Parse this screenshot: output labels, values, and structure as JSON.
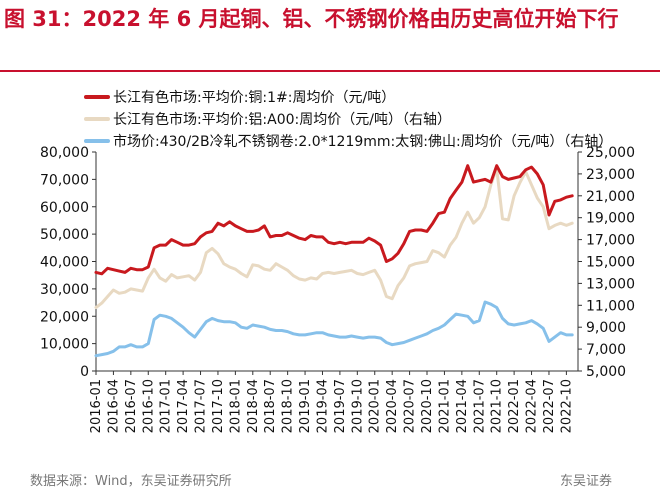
{
  "header": {
    "title": "图 31：2022 年 6 月起铜、铝、不锈钢价格由历史高位开始下行"
  },
  "footer": {
    "source": "数据来源：Wind，东吴证券研究所",
    "brand": "东吴证券"
  },
  "colors": {
    "title": "#c8102e",
    "copper": "#c8191e",
    "aluminum": "#e8d9c2",
    "stainless": "#86c0ea",
    "axis": "#333333"
  },
  "chart_data": {
    "type": "line",
    "title": "",
    "legend_placement": "top-left",
    "grid": false,
    "x_tick_labels": [
      "2016-01",
      "2016-04",
      "2016-07",
      "2016-10",
      "2017-01",
      "2017-04",
      "2017-07",
      "2017-10",
      "2018-01",
      "2018-04",
      "2018-07",
      "2018-10",
      "2019-01",
      "2019-04",
      "2019-07",
      "2019-10",
      "2020-01",
      "2020-04",
      "2020-07",
      "2020-10",
      "2021-01",
      "2021-04",
      "2021-07",
      "2021-10",
      "2022-01",
      "2022-04",
      "2022-07",
      "2022-10"
    ],
    "x_range": [
      "2016-01",
      "2022-12"
    ],
    "y_left": {
      "min": 0,
      "max": 80000,
      "ticks": [
        "0",
        "10,000",
        "20,000",
        "30,000",
        "40,000",
        "50,000",
        "60,000",
        "70,000",
        "80,000"
      ]
    },
    "y_right": {
      "min": 5000,
      "max": 25000,
      "ticks": [
        "5,000",
        "7,000",
        "9,000",
        "11,000",
        "13,000",
        "15,000",
        "17,000",
        "19,000",
        "21,000",
        "23,000",
        "25,000"
      ]
    },
    "series": [
      {
        "name": "长江有色市场:平均价:铜:1#:周均价（元/吨）",
        "axis": "left",
        "color": "#c8191e",
        "points": [
          [
            "2016-01",
            36000
          ],
          [
            "2016-02",
            35500
          ],
          [
            "2016-03",
            37500
          ],
          [
            "2016-04",
            37000
          ],
          [
            "2016-05",
            36500
          ],
          [
            "2016-06",
            36000
          ],
          [
            "2016-07",
            37500
          ],
          [
            "2016-08",
            37000
          ],
          [
            "2016-09",
            37000
          ],
          [
            "2016-10",
            38000
          ],
          [
            "2016-11",
            45000
          ],
          [
            "2016-12",
            46000
          ],
          [
            "2017-01",
            46000
          ],
          [
            "2017-02",
            48000
          ],
          [
            "2017-03",
            47000
          ],
          [
            "2017-04",
            46000
          ],
          [
            "2017-05",
            46000
          ],
          [
            "2017-06",
            46500
          ],
          [
            "2017-07",
            49000
          ],
          [
            "2017-08",
            50500
          ],
          [
            "2017-09",
            51000
          ],
          [
            "2017-10",
            54000
          ],
          [
            "2017-11",
            53000
          ],
          [
            "2017-12",
            54500
          ],
          [
            "2018-01",
            53000
          ],
          [
            "2018-02",
            52000
          ],
          [
            "2018-03",
            51000
          ],
          [
            "2018-04",
            51000
          ],
          [
            "2018-05",
            51500
          ],
          [
            "2018-06",
            53000
          ],
          [
            "2018-07",
            49000
          ],
          [
            "2018-08",
            49500
          ],
          [
            "2018-09",
            49500
          ],
          [
            "2018-10",
            50500
          ],
          [
            "2018-11",
            49500
          ],
          [
            "2018-12",
            48500
          ],
          [
            "2019-01",
            48000
          ],
          [
            "2019-02",
            49500
          ],
          [
            "2019-03",
            49000
          ],
          [
            "2019-04",
            49000
          ],
          [
            "2019-05",
            47000
          ],
          [
            "2019-06",
            46500
          ],
          [
            "2019-07",
            47000
          ],
          [
            "2019-08",
            46500
          ],
          [
            "2019-09",
            47000
          ],
          [
            "2019-10",
            47000
          ],
          [
            "2019-11",
            47000
          ],
          [
            "2019-12",
            48500
          ],
          [
            "2020-01",
            47500
          ],
          [
            "2020-02",
            46000
          ],
          [
            "2020-03",
            40000
          ],
          [
            "2020-04",
            41000
          ],
          [
            "2020-05",
            43000
          ],
          [
            "2020-06",
            46500
          ],
          [
            "2020-07",
            51000
          ],
          [
            "2020-08",
            51500
          ],
          [
            "2020-09",
            51500
          ],
          [
            "2020-10",
            51000
          ],
          [
            "2020-11",
            54000
          ],
          [
            "2020-12",
            57500
          ],
          [
            "2021-01",
            58000
          ],
          [
            "2021-02",
            63000
          ],
          [
            "2021-03",
            66000
          ],
          [
            "2021-04",
            69000
          ],
          [
            "2021-05",
            75000
          ],
          [
            "2021-06",
            69000
          ],
          [
            "2021-07",
            69500
          ],
          [
            "2021-08",
            70000
          ],
          [
            "2021-09",
            69000
          ],
          [
            "2021-10",
            75000
          ],
          [
            "2021-11",
            71000
          ],
          [
            "2021-12",
            70000
          ],
          [
            "2022-01",
            70500
          ],
          [
            "2022-02",
            71000
          ],
          [
            "2022-03",
            73500
          ],
          [
            "2022-04",
            74500
          ],
          [
            "2022-05",
            72000
          ],
          [
            "2022-06",
            68000
          ],
          [
            "2022-07",
            57000
          ],
          [
            "2022-08",
            62000
          ],
          [
            "2022-09",
            62500
          ],
          [
            "2022-10",
            63500
          ],
          [
            "2022-11",
            64000
          ]
        ]
      },
      {
        "name": "长江有色市场:平均价:铝:A00:周均价（元/吨）（右轴）",
        "axis": "right",
        "color": "#e8d9c2",
        "points": [
          [
            "2016-01",
            10800
          ],
          [
            "2016-02",
            11200
          ],
          [
            "2016-03",
            11800
          ],
          [
            "2016-04",
            12400
          ],
          [
            "2016-05",
            12100
          ],
          [
            "2016-06",
            12200
          ],
          [
            "2016-07",
            12500
          ],
          [
            "2016-08",
            12400
          ],
          [
            "2016-09",
            12300
          ],
          [
            "2016-10",
            13500
          ],
          [
            "2016-11",
            14300
          ],
          [
            "2016-12",
            13500
          ],
          [
            "2017-01",
            13200
          ],
          [
            "2017-02",
            13800
          ],
          [
            "2017-03",
            13500
          ],
          [
            "2017-04",
            13600
          ],
          [
            "2017-05",
            13700
          ],
          [
            "2017-06",
            13300
          ],
          [
            "2017-07",
            14000
          ],
          [
            "2017-08",
            15800
          ],
          [
            "2017-09",
            16200
          ],
          [
            "2017-10",
            15700
          ],
          [
            "2017-11",
            14800
          ],
          [
            "2017-12",
            14500
          ],
          [
            "2018-01",
            14300
          ],
          [
            "2018-02",
            13900
          ],
          [
            "2018-03",
            13600
          ],
          [
            "2018-04",
            14700
          ],
          [
            "2018-05",
            14600
          ],
          [
            "2018-06",
            14300
          ],
          [
            "2018-07",
            14200
          ],
          [
            "2018-08",
            14800
          ],
          [
            "2018-09",
            14500
          ],
          [
            "2018-10",
            14200
          ],
          [
            "2018-11",
            13700
          ],
          [
            "2018-12",
            13400
          ],
          [
            "2019-01",
            13300
          ],
          [
            "2019-02",
            13500
          ],
          [
            "2019-03",
            13400
          ],
          [
            "2019-04",
            13900
          ],
          [
            "2019-05",
            14000
          ],
          [
            "2019-06",
            13900
          ],
          [
            "2019-07",
            14000
          ],
          [
            "2019-08",
            14100
          ],
          [
            "2019-09",
            14200
          ],
          [
            "2019-10",
            13900
          ],
          [
            "2019-11",
            13800
          ],
          [
            "2019-12",
            14000
          ],
          [
            "2020-01",
            14200
          ],
          [
            "2020-02",
            13300
          ],
          [
            "2020-03",
            11800
          ],
          [
            "2020-04",
            11600
          ],
          [
            "2020-05",
            12800
          ],
          [
            "2020-06",
            13500
          ],
          [
            "2020-07",
            14600
          ],
          [
            "2020-08",
            14800
          ],
          [
            "2020-09",
            14900
          ],
          [
            "2020-10",
            15000
          ],
          [
            "2020-11",
            16000
          ],
          [
            "2020-12",
            15800
          ],
          [
            "2021-01",
            15400
          ],
          [
            "2021-02",
            16500
          ],
          [
            "2021-03",
            17200
          ],
          [
            "2021-04",
            18500
          ],
          [
            "2021-05",
            19500
          ],
          [
            "2021-06",
            18500
          ],
          [
            "2021-07",
            19000
          ],
          [
            "2021-08",
            20000
          ],
          [
            "2021-09",
            22000
          ],
          [
            "2021-10",
            23500
          ],
          [
            "2021-11",
            18900
          ],
          [
            "2021-12",
            18800
          ],
          [
            "2022-01",
            21000
          ],
          [
            "2022-02",
            22200
          ],
          [
            "2022-03",
            23200
          ],
          [
            "2022-04",
            22000
          ],
          [
            "2022-05",
            20800
          ],
          [
            "2022-06",
            20000
          ],
          [
            "2022-07",
            18000
          ],
          [
            "2022-08",
            18300
          ],
          [
            "2022-09",
            18500
          ],
          [
            "2022-10",
            18300
          ],
          [
            "2022-11",
            18500
          ]
        ]
      },
      {
        "name": "市场价:430/2B冷轧不锈钢卷:2.0*1219mm:太钢:佛山:周均价（元/吨）（右轴）",
        "axis": "right",
        "color": "#86c0ea",
        "points": [
          [
            "2016-01",
            6400
          ],
          [
            "2016-02",
            6500
          ],
          [
            "2016-03",
            6600
          ],
          [
            "2016-04",
            6800
          ],
          [
            "2016-05",
            7200
          ],
          [
            "2016-06",
            7200
          ],
          [
            "2016-07",
            7400
          ],
          [
            "2016-08",
            7200
          ],
          [
            "2016-09",
            7200
          ],
          [
            "2016-10",
            7500
          ],
          [
            "2016-11",
            9700
          ],
          [
            "2016-12",
            10100
          ],
          [
            "2017-01",
            10000
          ],
          [
            "2017-02",
            9800
          ],
          [
            "2017-03",
            9400
          ],
          [
            "2017-04",
            9000
          ],
          [
            "2017-05",
            8500
          ],
          [
            "2017-06",
            8100
          ],
          [
            "2017-07",
            8800
          ],
          [
            "2017-08",
            9500
          ],
          [
            "2017-09",
            9800
          ],
          [
            "2017-10",
            9600
          ],
          [
            "2017-11",
            9500
          ],
          [
            "2017-12",
            9500
          ],
          [
            "2018-01",
            9400
          ],
          [
            "2018-02",
            9000
          ],
          [
            "2018-03",
            8900
          ],
          [
            "2018-04",
            9200
          ],
          [
            "2018-05",
            9100
          ],
          [
            "2018-06",
            9000
          ],
          [
            "2018-07",
            8800
          ],
          [
            "2018-08",
            8700
          ],
          [
            "2018-09",
            8700
          ],
          [
            "2018-10",
            8600
          ],
          [
            "2018-11",
            8400
          ],
          [
            "2018-12",
            8300
          ],
          [
            "2019-01",
            8300
          ],
          [
            "2019-02",
            8400
          ],
          [
            "2019-03",
            8500
          ],
          [
            "2019-04",
            8500
          ],
          [
            "2019-05",
            8300
          ],
          [
            "2019-06",
            8200
          ],
          [
            "2019-07",
            8100
          ],
          [
            "2019-08",
            8100
          ],
          [
            "2019-09",
            8200
          ],
          [
            "2019-10",
            8100
          ],
          [
            "2019-11",
            8000
          ],
          [
            "2019-12",
            8100
          ],
          [
            "2020-01",
            8100
          ],
          [
            "2020-02",
            8000
          ],
          [
            "2020-03",
            7600
          ],
          [
            "2020-04",
            7400
          ],
          [
            "2020-05",
            7500
          ],
          [
            "2020-06",
            7600
          ],
          [
            "2020-07",
            7800
          ],
          [
            "2020-08",
            8000
          ],
          [
            "2020-09",
            8200
          ],
          [
            "2020-10",
            8400
          ],
          [
            "2020-11",
            8700
          ],
          [
            "2020-12",
            8900
          ],
          [
            "2021-01",
            9200
          ],
          [
            "2021-02",
            9700
          ],
          [
            "2021-03",
            10200
          ],
          [
            "2021-04",
            10100
          ],
          [
            "2021-05",
            10000
          ],
          [
            "2021-06",
            9400
          ],
          [
            "2021-07",
            9600
          ],
          [
            "2021-08",
            11300
          ],
          [
            "2021-09",
            11100
          ],
          [
            "2021-10",
            10800
          ],
          [
            "2021-11",
            9800
          ],
          [
            "2021-12",
            9300
          ],
          [
            "2022-01",
            9200
          ],
          [
            "2022-02",
            9300
          ],
          [
            "2022-03",
            9400
          ],
          [
            "2022-04",
            9600
          ],
          [
            "2022-05",
            9300
          ],
          [
            "2022-06",
            8900
          ],
          [
            "2022-07",
            7700
          ],
          [
            "2022-08",
            8100
          ],
          [
            "2022-09",
            8500
          ],
          [
            "2022-10",
            8300
          ],
          [
            "2022-11",
            8300
          ]
        ]
      }
    ]
  }
}
